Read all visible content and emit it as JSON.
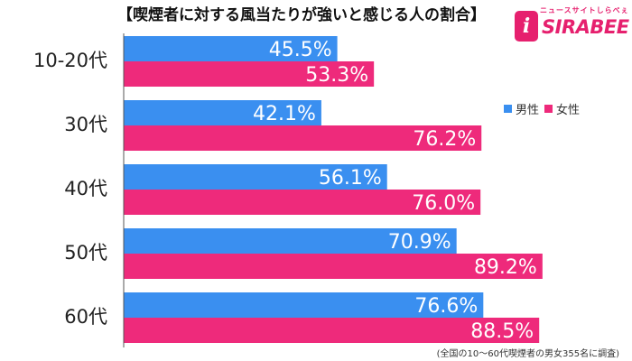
{
  "title": "【喫煙者に対する風当たりが強いと感じる人の割合】",
  "logo": {
    "tagline": "ニュースサイトしらべぇ",
    "mark": "i",
    "word": "SIRABEE"
  },
  "footnote": "(全国の10～60代喫煙者の男女355名に調査)",
  "colors": {
    "male": "#3a8ff0",
    "female": "#ee2a7b"
  },
  "chart_data": {
    "type": "bar",
    "orientation": "horizontal",
    "categories": [
      "10-20代",
      "30代",
      "40代",
      "50代",
      "60代"
    ],
    "series": [
      {
        "name": "男性",
        "values": [
          45.5,
          42.1,
          56.1,
          70.9,
          76.6
        ],
        "color": "#3a8ff0"
      },
      {
        "name": "女性",
        "values": [
          53.3,
          76.2,
          76.0,
          89.2,
          88.5
        ],
        "color": "#ee2a7b"
      }
    ],
    "value_suffix": "%",
    "xlim": [
      0,
      100
    ],
    "legend_position": "right",
    "grid": false
  }
}
